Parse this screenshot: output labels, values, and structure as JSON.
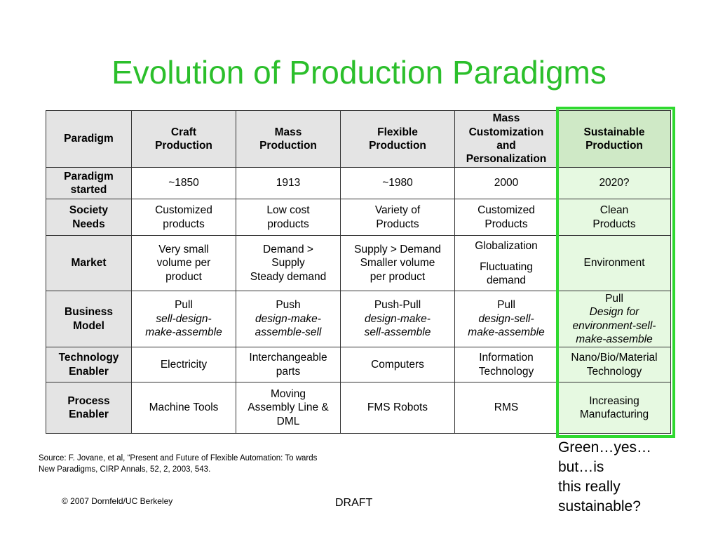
{
  "slide": {
    "title": "Evolution of Production Paradigms",
    "note_lines": [
      "Green…yes…",
      "but…is",
      "this really",
      "sustainable?"
    ],
    "source": "Source: F. Jovane, et al, “Present and Future of Flexible Automation: To wards New Paradigms,  CIRP Annals, 52, 2, 2003, 543.",
    "copyright": "© 2007 Dornfeld/UC Berkeley",
    "draft": "DRAFT",
    "highlight_color": "#2fd92f",
    "title_color": "#2bbf2b"
  },
  "table": {
    "corner": "Paradigm",
    "columns": [
      [
        "Craft",
        "Production"
      ],
      [
        "Mass",
        "Production"
      ],
      [
        "Flexible",
        "Production"
      ],
      [
        "Mass",
        "Customization",
        "and",
        "Personalization"
      ],
      [
        "Sustainable",
        "Production"
      ]
    ],
    "rows": [
      {
        "header": [
          "Paradigm",
          "started"
        ],
        "cells": [
          [
            {
              "t": "~1850"
            }
          ],
          [
            {
              "t": "1913"
            }
          ],
          [
            {
              "t": "~1980"
            }
          ],
          [
            {
              "t": "2000"
            }
          ],
          [
            {
              "t": "2020?"
            }
          ]
        ]
      },
      {
        "header": [
          "Society",
          "Needs"
        ],
        "cells": [
          [
            {
              "t": "Customized"
            },
            {
              "t": "products"
            }
          ],
          [
            {
              "t": "Low cost"
            },
            {
              "t": "products"
            }
          ],
          [
            {
              "t": "Variety of"
            },
            {
              "t": "Products"
            }
          ],
          [
            {
              "t": "Customized"
            },
            {
              "t": "Products"
            }
          ],
          [
            {
              "t": "Clean"
            },
            {
              "t": "Products"
            }
          ]
        ]
      },
      {
        "header": [
          "Market"
        ],
        "cells": [
          [
            {
              "t": "Very small"
            },
            {
              "t": "volume per"
            },
            {
              "t": "product"
            }
          ],
          [
            {
              "t": "Demand >"
            },
            {
              "t": "Supply"
            },
            {
              "t": "Steady demand"
            }
          ],
          [
            {
              "t": "Supply > Demand"
            },
            {
              "t": "Smaller volume"
            },
            {
              "t": "per product"
            }
          ],
          [
            {
              "t": "Globalization"
            },
            {
              "t": ""
            },
            {
              "t": "Fluctuating"
            },
            {
              "t": "demand"
            }
          ],
          [
            {
              "t": "Environment"
            }
          ]
        ]
      },
      {
        "header": [
          "Business",
          "Model"
        ],
        "cells": [
          [
            {
              "t": "Pull"
            },
            {
              "t": "sell-design-",
              "i": true
            },
            {
              "t": "make-assemble",
              "i": true
            }
          ],
          [
            {
              "t": "Push"
            },
            {
              "t": "design-make-",
              "i": true
            },
            {
              "t": "assemble-sell",
              "i": true
            }
          ],
          [
            {
              "t": "Push-Pull"
            },
            {
              "t": "design-make-",
              "i": true
            },
            {
              "t": "sell-assemble",
              "i": true
            }
          ],
          [
            {
              "t": "Pull"
            },
            {
              "t": "design-sell-",
              "i": true
            },
            {
              "t": "make-assemble",
              "i": true
            }
          ],
          [
            {
              "t": "Pull"
            },
            {
              "t": "Design for",
              "i": true
            },
            {
              "t": "environment-sell-",
              "i": true
            },
            {
              "t": "make-assemble",
              "i": true
            }
          ]
        ]
      },
      {
        "header": [
          "Technology",
          "Enabler"
        ],
        "cells": [
          [
            {
              "t": "Electricity"
            }
          ],
          [
            {
              "t": "Interchangeable"
            },
            {
              "t": "parts"
            }
          ],
          [
            {
              "t": "Computers"
            }
          ],
          [
            {
              "t": "Information"
            },
            {
              "t": "Technology"
            }
          ],
          [
            {
              "t": "Nano/Bio/Material"
            },
            {
              "t": "Technology"
            }
          ]
        ]
      },
      {
        "header": [
          "Process",
          "Enabler"
        ],
        "cells": [
          [
            {
              "t": "Machine Tools"
            }
          ],
          [
            {
              "t": "Moving"
            },
            {
              "t": "Assembly Line &"
            },
            {
              "t": "DML"
            }
          ],
          [
            {
              "t": "FMS Robots"
            }
          ],
          [
            {
              "t": "RMS"
            }
          ],
          [
            {
              "t": "Increasing"
            },
            {
              "t": "Manufacturing"
            }
          ]
        ]
      }
    ]
  }
}
